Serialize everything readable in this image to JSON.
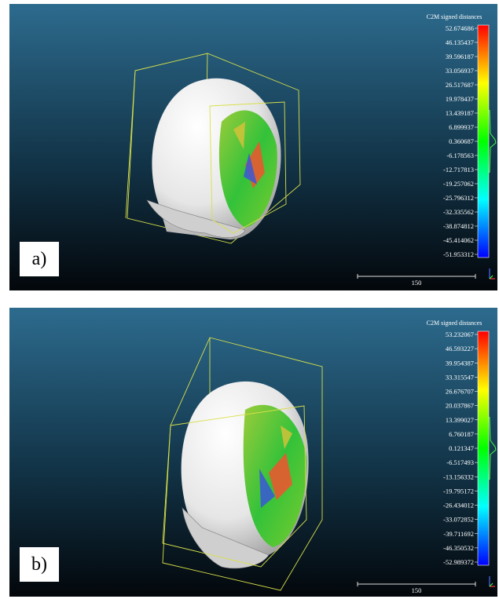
{
  "panels": [
    {
      "label": "a)",
      "scale_title": "C2M signed distances",
      "scale_ticks": [
        "52.674686",
        "46.135437",
        "39.596187",
        "33.056937",
        "26.517687",
        "19.978437",
        "13.439187",
        "6.899937",
        "0.360687",
        "-6.178563",
        "-12.717813",
        "-19.257062",
        "-25.796312",
        "-32.335562",
        "-38.874812",
        "-45.414062",
        "-51.953312"
      ],
      "scale_bar": "150"
    },
    {
      "label": "b)",
      "scale_title": "C2M signed distances",
      "scale_ticks": [
        "53.232067",
        "46.593227",
        "39.954387",
        "33.315547",
        "26.676707",
        "20.037867",
        "13.399027",
        "6.760187",
        "0.121347",
        "-6.517493",
        "-13.156332",
        "-19.795172",
        "-26.434012",
        "-33.072852",
        "-39.711692",
        "-46.350532",
        "-52.989372"
      ],
      "scale_bar": "150"
    }
  ]
}
